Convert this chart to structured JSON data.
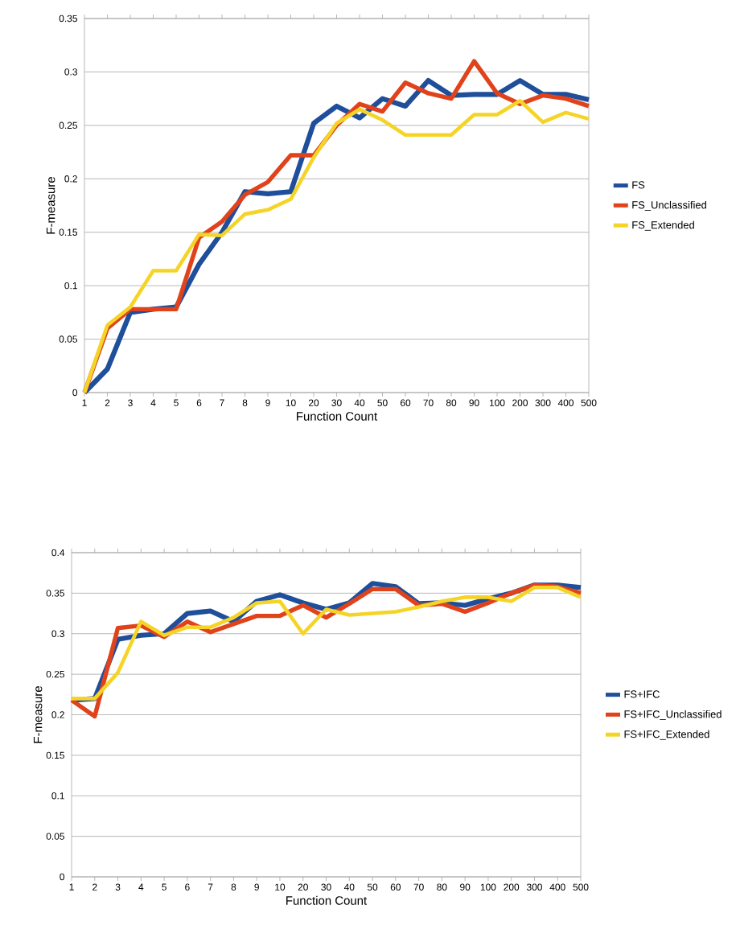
{
  "chart_data": [
    {
      "type": "line",
      "xlabel": "Function Count",
      "ylabel": "F-measure",
      "categories": [
        "1",
        "2",
        "3",
        "4",
        "5",
        "6",
        "7",
        "8",
        "9",
        "10",
        "20",
        "30",
        "40",
        "50",
        "60",
        "70",
        "80",
        "90",
        "100",
        "200",
        "300",
        "400",
        "500"
      ],
      "ylim": [
        0,
        0.35
      ],
      "yticks": [
        0,
        0.05,
        0.1,
        0.15,
        0.2,
        0.25,
        0.3,
        0.35
      ],
      "grid": "y",
      "legend": "right",
      "line_style": "solid",
      "marker": "none",
      "series": [
        {
          "name": "FS",
          "color": "#1f4e9a",
          "values": [
            0,
            0.022,
            0.075,
            0.078,
            0.08,
            0.12,
            0.15,
            0.188,
            0.186,
            0.188,
            0.252,
            0.268,
            0.257,
            0.275,
            0.268,
            0.292,
            0.278,
            0.279,
            0.279,
            0.292,
            0.279,
            0.279,
            0.274
          ]
        },
        {
          "name": "FS_Unclassified",
          "color": "#e0431b",
          "values": [
            0,
            0.06,
            0.078,
            0.078,
            0.078,
            0.145,
            0.16,
            0.185,
            0.197,
            0.222,
            0.222,
            0.25,
            0.27,
            0.263,
            0.29,
            0.28,
            0.275,
            0.31,
            0.28,
            0.27,
            0.278,
            0.275,
            0.268
          ]
        },
        {
          "name": "FS_Extended",
          "color": "#f5d428",
          "values": [
            0,
            0.063,
            0.08,
            0.114,
            0.114,
            0.148,
            0.147,
            0.167,
            0.171,
            0.181,
            0.22,
            0.252,
            0.265,
            0.255,
            0.241,
            0.241,
            0.241,
            0.26,
            0.26,
            0.273,
            0.253,
            0.262,
            0.256
          ]
        }
      ]
    },
    {
      "type": "line",
      "xlabel": "Function Count",
      "ylabel": "F-measure",
      "categories": [
        "1",
        "2",
        "3",
        "4",
        "5",
        "6",
        "7",
        "8",
        "9",
        "10",
        "20",
        "30",
        "40",
        "50",
        "60",
        "70",
        "80",
        "90",
        "100",
        "200",
        "300",
        "400",
        "500"
      ],
      "ylim": [
        0,
        0.4
      ],
      "yticks": [
        0,
        0.05,
        0.1,
        0.15,
        0.2,
        0.25,
        0.3,
        0.35,
        0.4
      ],
      "grid": "y",
      "legend": "right",
      "line_style": "solid",
      "marker": "none",
      "series": [
        {
          "name": "FS+IFC",
          "color": "#1f4e9a",
          "values": [
            0.218,
            0.22,
            0.293,
            0.298,
            0.3,
            0.325,
            0.328,
            0.315,
            0.34,
            0.348,
            0.338,
            0.33,
            0.338,
            0.362,
            0.358,
            0.337,
            0.338,
            0.335,
            0.343,
            0.35,
            0.36,
            0.36,
            0.357
          ]
        },
        {
          "name": "FS+IFC_Unclassified",
          "color": "#e0431b",
          "values": [
            0.218,
            0.198,
            0.307,
            0.31,
            0.296,
            0.315,
            0.302,
            0.312,
            0.322,
            0.322,
            0.335,
            0.32,
            0.337,
            0.355,
            0.355,
            0.335,
            0.337,
            0.327,
            0.338,
            0.35,
            0.36,
            0.358,
            0.35
          ]
        },
        {
          "name": "FS+IFC_Extended",
          "color": "#f5d428",
          "values": [
            0.22,
            0.22,
            0.252,
            0.315,
            0.298,
            0.308,
            0.308,
            0.32,
            0.338,
            0.34,
            0.3,
            0.33,
            0.323,
            0.325,
            0.327,
            0.333,
            0.34,
            0.345,
            0.345,
            0.34,
            0.357,
            0.357,
            0.345
          ]
        }
      ]
    }
  ]
}
